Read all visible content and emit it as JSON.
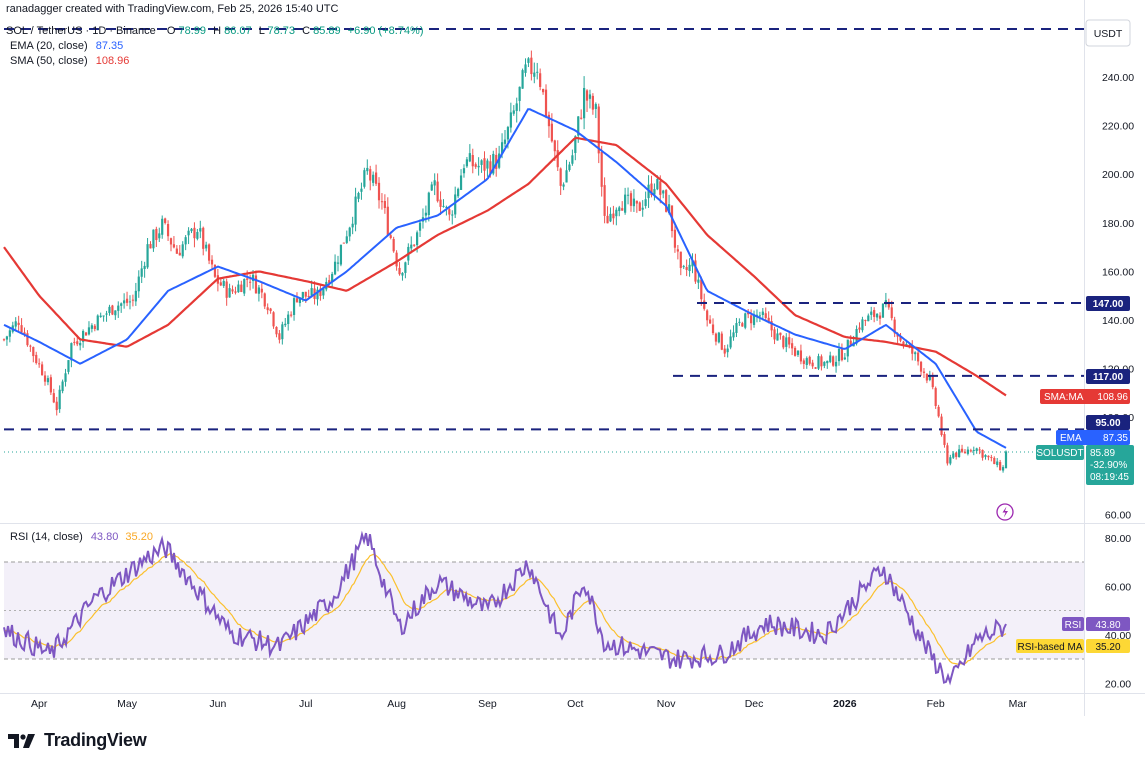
{
  "header": {
    "author_line": "ranadagger created with TradingView.com, Feb 25, 2026 15:40 UTC",
    "symbol_line": "SOL / TetherUS · 1D · Binance",
    "ohlc": {
      "o_label": "O",
      "o": "78.99",
      "h_label": "H",
      "h": "86.07",
      "l_label": "L",
      "l": "78.73",
      "c_label": "C",
      "c": "85.89",
      "change": "+6.90 (+8.74%)"
    },
    "ema_line": "EMA (20, close)",
    "ema_value": "87.35",
    "sma_line": "SMA (50, close)",
    "sma_value": "108.96"
  },
  "currency": "USDT",
  "price_axis": {
    "ticks": [
      "240.00",
      "220.00",
      "200.00",
      "180.00",
      "160.00",
      "140.00",
      "120.00",
      "100.00",
      "60.00"
    ]
  },
  "levels": {
    "l147": "147.00",
    "l117": "117.00",
    "l95": "95.00"
  },
  "tags": {
    "sma_label": "SMA:MA",
    "sma_value": "108.96",
    "ema_label": "EMA",
    "ema_value": "87.35",
    "sym_label": "SOLUSDT",
    "sym_price": "85.89",
    "sym_change": "-32.90%",
    "sym_timer": "08:19:45"
  },
  "rsi": {
    "title": "RSI (14, close)",
    "value": "43.80",
    "ma_value": "35.20",
    "ticks": [
      "80.00",
      "60.00",
      "40.00",
      "20.00"
    ],
    "tag_label": "RSI",
    "tag_value": "43.80",
    "ma_tag_label": "RSI-based MA",
    "ma_tag_value": "35.20"
  },
  "time_axis": [
    "Apr",
    "May",
    "Jun",
    "Jul",
    "Aug",
    "Sep",
    "Oct",
    "Nov",
    "Dec",
    "2026",
    "Feb",
    "Mar"
  ],
  "footer": {
    "logo_text": "TradingView"
  },
  "colors": {
    "up": "#26a69a",
    "down": "#ef5350",
    "ema": "#2962ff",
    "sma": "#e53935",
    "rsi": "#7e57c2",
    "rsi_ma": "#fbc02d",
    "level": "#1a237e"
  },
  "chart_data": {
    "type": "candlestick",
    "symbol": "SOL / TetherUS",
    "interval": "1D",
    "ylim": [
      50,
      255
    ],
    "horizontal_levels": [
      147,
      117,
      95
    ],
    "close_series": [
      {
        "date": "2025-03-20",
        "close": 132
      },
      {
        "date": "2025-03-25",
        "close": 140
      },
      {
        "date": "2025-03-30",
        "close": 126
      },
      {
        "date": "2025-04-03",
        "close": 117
      },
      {
        "date": "2025-04-07",
        "close": 104
      },
      {
        "date": "2025-04-12",
        "close": 130
      },
      {
        "date": "2025-04-20",
        "close": 139
      },
      {
        "date": "2025-04-27",
        "close": 146
      },
      {
        "date": "2025-05-03",
        "close": 148
      },
      {
        "date": "2025-05-08",
        "close": 170
      },
      {
        "date": "2025-05-13",
        "close": 179
      },
      {
        "date": "2025-05-18",
        "close": 168
      },
      {
        "date": "2025-05-25",
        "close": 178
      },
      {
        "date": "2025-05-31",
        "close": 157
      },
      {
        "date": "2025-06-05",
        "close": 151
      },
      {
        "date": "2025-06-12",
        "close": 158
      },
      {
        "date": "2025-06-18",
        "close": 147
      },
      {
        "date": "2025-06-22",
        "close": 133
      },
      {
        "date": "2025-06-28",
        "close": 150
      },
      {
        "date": "2025-07-05",
        "close": 150
      },
      {
        "date": "2025-07-11",
        "close": 163
      },
      {
        "date": "2025-07-16",
        "close": 180
      },
      {
        "date": "2025-07-22",
        "close": 201
      },
      {
        "date": "2025-07-27",
        "close": 188
      },
      {
        "date": "2025-08-02",
        "close": 160
      },
      {
        "date": "2025-08-08",
        "close": 175
      },
      {
        "date": "2025-08-14",
        "close": 195
      },
      {
        "date": "2025-08-19",
        "close": 182
      },
      {
        "date": "2025-08-24",
        "close": 205
      },
      {
        "date": "2025-08-30",
        "close": 203
      },
      {
        "date": "2025-09-05",
        "close": 206
      },
      {
        "date": "2025-09-10",
        "close": 225
      },
      {
        "date": "2025-09-14",
        "close": 242
      },
      {
        "date": "2025-09-18",
        "close": 245
      },
      {
        "date": "2025-09-22",
        "close": 220
      },
      {
        "date": "2025-09-26",
        "close": 195
      },
      {
        "date": "2025-09-30",
        "close": 208
      },
      {
        "date": "2025-10-04",
        "close": 233
      },
      {
        "date": "2025-10-08",
        "close": 225
      },
      {
        "date": "2025-10-11",
        "close": 180
      },
      {
        "date": "2025-10-16",
        "close": 190
      },
      {
        "date": "2025-10-22",
        "close": 185
      },
      {
        "date": "2025-10-28",
        "close": 197
      },
      {
        "date": "2025-11-02",
        "close": 185
      },
      {
        "date": "2025-11-06",
        "close": 158
      },
      {
        "date": "2025-11-10",
        "close": 163
      },
      {
        "date": "2025-11-15",
        "close": 140
      },
      {
        "date": "2025-11-21",
        "close": 128
      },
      {
        "date": "2025-11-27",
        "close": 140
      },
      {
        "date": "2025-12-03",
        "close": 142
      },
      {
        "date": "2025-12-09",
        "close": 133
      },
      {
        "date": "2025-12-15",
        "close": 127
      },
      {
        "date": "2025-12-20",
        "close": 123
      },
      {
        "date": "2025-12-26",
        "close": 122
      },
      {
        "date": "2026-01-01",
        "close": 127
      },
      {
        "date": "2026-01-06",
        "close": 138
      },
      {
        "date": "2026-01-12",
        "close": 143
      },
      {
        "date": "2026-01-15",
        "close": 145
      },
      {
        "date": "2026-01-20",
        "close": 132
      },
      {
        "date": "2026-01-25",
        "close": 125
      },
      {
        "date": "2026-01-30",
        "close": 115
      },
      {
        "date": "2026-02-02",
        "close": 100
      },
      {
        "date": "2026-02-05",
        "close": 80
      },
      {
        "date": "2026-02-06",
        "close": 85
      },
      {
        "date": "2026-02-10",
        "close": 85
      },
      {
        "date": "2026-02-14",
        "close": 88
      },
      {
        "date": "2026-02-18",
        "close": 84
      },
      {
        "date": "2026-02-22",
        "close": 80
      },
      {
        "date": "2026-02-24",
        "close": 79
      },
      {
        "date": "2026-02-25",
        "close": 85.89
      }
    ],
    "ema20": [
      {
        "date": "2025-03-20",
        "value": 138
      },
      {
        "date": "2025-04-01",
        "value": 131
      },
      {
        "date": "2025-04-15",
        "value": 122
      },
      {
        "date": "2025-05-01",
        "value": 132
      },
      {
        "date": "2025-05-15",
        "value": 152
      },
      {
        "date": "2025-06-01",
        "value": 162
      },
      {
        "date": "2025-06-15",
        "value": 156
      },
      {
        "date": "2025-07-01",
        "value": 148
      },
      {
        "date": "2025-07-15",
        "value": 160
      },
      {
        "date": "2025-08-01",
        "value": 178
      },
      {
        "date": "2025-08-15",
        "value": 183
      },
      {
        "date": "2025-09-01",
        "value": 198
      },
      {
        "date": "2025-09-15",
        "value": 227
      },
      {
        "date": "2025-10-01",
        "value": 218
      },
      {
        "date": "2025-10-15",
        "value": 205
      },
      {
        "date": "2025-11-01",
        "value": 187
      },
      {
        "date": "2025-11-15",
        "value": 152
      },
      {
        "date": "2025-12-01",
        "value": 142
      },
      {
        "date": "2025-12-15",
        "value": 134
      },
      {
        "date": "2026-01-01",
        "value": 128
      },
      {
        "date": "2026-01-15",
        "value": 138
      },
      {
        "date": "2026-02-01",
        "value": 122
      },
      {
        "date": "2026-02-15",
        "value": 94
      },
      {
        "date": "2026-02-25",
        "value": 87.35
      }
    ],
    "sma50": [
      {
        "date": "2025-03-20",
        "value": 170
      },
      {
        "date": "2025-04-01",
        "value": 150
      },
      {
        "date": "2025-04-15",
        "value": 132
      },
      {
        "date": "2025-05-01",
        "value": 129
      },
      {
        "date": "2025-05-15",
        "value": 138
      },
      {
        "date": "2025-06-01",
        "value": 157
      },
      {
        "date": "2025-06-15",
        "value": 160
      },
      {
        "date": "2025-07-01",
        "value": 156
      },
      {
        "date": "2025-07-15",
        "value": 152
      },
      {
        "date": "2025-08-01",
        "value": 164
      },
      {
        "date": "2025-08-15",
        "value": 175
      },
      {
        "date": "2025-09-01",
        "value": 185
      },
      {
        "date": "2025-09-15",
        "value": 196
      },
      {
        "date": "2025-10-01",
        "value": 215
      },
      {
        "date": "2025-10-15",
        "value": 212
      },
      {
        "date": "2025-11-01",
        "value": 196
      },
      {
        "date": "2025-11-15",
        "value": 175
      },
      {
        "date": "2025-12-01",
        "value": 158
      },
      {
        "date": "2025-12-15",
        "value": 142
      },
      {
        "date": "2026-01-01",
        "value": 133
      },
      {
        "date": "2026-01-15",
        "value": 131
      },
      {
        "date": "2026-02-01",
        "value": 127
      },
      {
        "date": "2026-02-15",
        "value": 117
      },
      {
        "date": "2026-02-25",
        "value": 108.96
      }
    ],
    "rsi14": [
      {
        "date": "2025-03-20",
        "value": 42
      },
      {
        "date": "2025-04-05",
        "value": 32
      },
      {
        "date": "2025-04-20",
        "value": 55
      },
      {
        "date": "2025-05-08",
        "value": 72
      },
      {
        "date": "2025-05-14",
        "value": 76
      },
      {
        "date": "2025-06-05",
        "value": 41
      },
      {
        "date": "2025-06-22",
        "value": 35
      },
      {
        "date": "2025-07-10",
        "value": 55
      },
      {
        "date": "2025-07-22",
        "value": 81
      },
      {
        "date": "2025-08-02",
        "value": 43
      },
      {
        "date": "2025-08-15",
        "value": 62
      },
      {
        "date": "2025-09-01",
        "value": 50
      },
      {
        "date": "2025-09-15",
        "value": 70
      },
      {
        "date": "2025-09-26",
        "value": 38
      },
      {
        "date": "2025-10-04",
        "value": 63
      },
      {
        "date": "2025-10-11",
        "value": 37
      },
      {
        "date": "2025-11-04",
        "value": 30
      },
      {
        "date": "2025-11-20",
        "value": 32
      },
      {
        "date": "2025-12-05",
        "value": 45
      },
      {
        "date": "2025-12-25",
        "value": 40
      },
      {
        "date": "2026-01-14",
        "value": 68
      },
      {
        "date": "2026-01-30",
        "value": 32
      },
      {
        "date": "2026-02-06",
        "value": 20
      },
      {
        "date": "2026-02-15",
        "value": 38
      },
      {
        "date": "2026-02-25",
        "value": 43.8
      }
    ],
    "rsi_ma": 35.2,
    "rsi_ylim": [
      15,
      85
    ],
    "rsi_bands": [
      70,
      50,
      30
    ]
  }
}
